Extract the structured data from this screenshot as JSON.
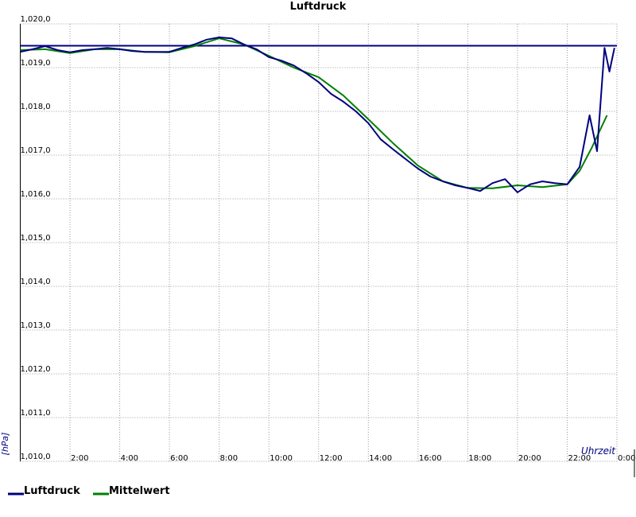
{
  "chart_data": {
    "type": "line",
    "title": "Luftdruck",
    "x_label": "Uhrzeit",
    "y_label": "[hPa]",
    "xlim": [
      0,
      24
    ],
    "xticks": [
      {
        "value": 2,
        "label": "2:00"
      },
      {
        "value": 4,
        "label": "4:00"
      },
      {
        "value": 6,
        "label": "6:00"
      },
      {
        "value": 8,
        "label": "8:00"
      },
      {
        "value": 10,
        "label": "10:00"
      },
      {
        "value": 12,
        "label": "12:00"
      },
      {
        "value": 14,
        "label": "14:00"
      },
      {
        "value": 16,
        "label": "16:00"
      },
      {
        "value": 18,
        "label": "18:00"
      },
      {
        "value": 20,
        "label": "20:00"
      },
      {
        "value": 22,
        "label": "22:00"
      },
      {
        "value": 24,
        "label": "0:00"
      }
    ],
    "ylim": [
      1010,
      1020
    ],
    "yticks": [
      {
        "value": 1010,
        "label": "1,010,0"
      },
      {
        "value": 1011,
        "label": "1,011,0"
      },
      {
        "value": 1012,
        "label": "1,012,0"
      },
      {
        "value": 1013,
        "label": "1,013,0"
      },
      {
        "value": 1014,
        "label": "1,014,0"
      },
      {
        "value": 1015,
        "label": "1,015,0"
      },
      {
        "value": 1016,
        "label": "1,016,0"
      },
      {
        "value": 1017,
        "label": "1,017,0"
      },
      {
        "value": 1018,
        "label": "1,018,0"
      },
      {
        "value": 1019,
        "label": "1,019,0"
      },
      {
        "value": 1020,
        "label": "1,020,0"
      }
    ],
    "grid": true,
    "reference_line": {
      "value": 1019.5,
      "color": "#000080"
    },
    "series": [
      {
        "name": "Luftdruck",
        "color": "#000080",
        "x": [
          0,
          0.5,
          1,
          1.5,
          2,
          2.5,
          3,
          3.5,
          4,
          4.5,
          5,
          5.5,
          6,
          6.5,
          7,
          7.5,
          8,
          8.5,
          9,
          9.5,
          10,
          10.5,
          11,
          11.5,
          12,
          12.5,
          13,
          13.5,
          14,
          14.5,
          15,
          15.5,
          16,
          16.5,
          17,
          17.5,
          18,
          18.5,
          19,
          19.5,
          20,
          20.5,
          21,
          21.5,
          22,
          22.5,
          22.9,
          23.2,
          23.5,
          23.7,
          23.9
        ],
        "values": [
          1019.36,
          1019.42,
          1019.49,
          1019.4,
          1019.35,
          1019.4,
          1019.42,
          1019.45,
          1019.42,
          1019.38,
          1019.36,
          1019.36,
          1019.36,
          1019.45,
          1019.53,
          1019.64,
          1019.69,
          1019.67,
          1019.53,
          1019.42,
          1019.24,
          1019.16,
          1019.05,
          1018.87,
          1018.67,
          1018.4,
          1018.22,
          1018.0,
          1017.73,
          1017.36,
          1017.13,
          1016.91,
          1016.69,
          1016.51,
          1016.4,
          1016.31,
          1016.25,
          1016.18,
          1016.36,
          1016.45,
          1016.15,
          1016.33,
          1016.4,
          1016.36,
          1016.33,
          1016.73,
          1017.91,
          1017.09,
          1019.45,
          1018.91,
          1019.45
        ]
      },
      {
        "name": "Mittelwert",
        "color": "#008000",
        "x": [
          0,
          1,
          2,
          3,
          4,
          5,
          6,
          7,
          8,
          9,
          10,
          11,
          12,
          13,
          14,
          15,
          16,
          17,
          18,
          19,
          20,
          21,
          22,
          22.5,
          23,
          23.6
        ],
        "values": [
          1019.4,
          1019.42,
          1019.33,
          1019.42,
          1019.42,
          1019.36,
          1019.35,
          1019.49,
          1019.67,
          1019.53,
          1019.27,
          1019.0,
          1018.78,
          1018.36,
          1017.82,
          1017.27,
          1016.76,
          1016.4,
          1016.25,
          1016.24,
          1016.31,
          1016.27,
          1016.33,
          1016.64,
          1017.18,
          1017.91
        ]
      }
    ]
  }
}
